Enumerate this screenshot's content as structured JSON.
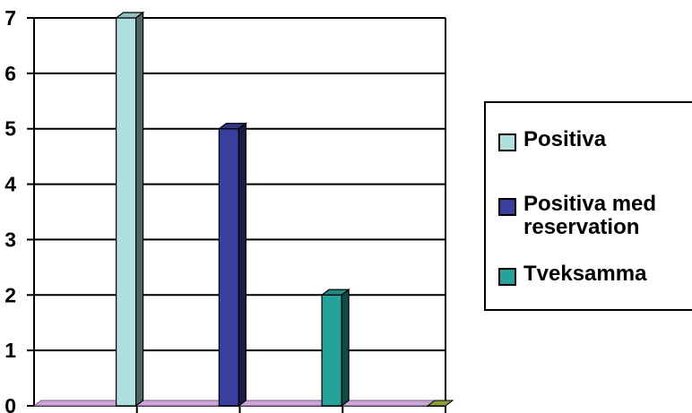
{
  "chart_data": {
    "type": "bar",
    "title": "",
    "xlabel": "",
    "ylabel": "",
    "ylim": [
      0,
      7
    ],
    "y_ticks": [
      "0",
      "1",
      "2",
      "3",
      "4",
      "5",
      "6",
      "7"
    ],
    "grid": true,
    "legend_position": "right",
    "categories": [
      "",
      "",
      "",
      ""
    ],
    "series": [
      {
        "name": "Positiva",
        "values": [
          7,
          0,
          0,
          0
        ],
        "color": "#aee0e0"
      },
      {
        "name": "Positiva med reservation",
        "values": [
          0,
          5,
          0,
          0
        ],
        "color": "#3a3f9e"
      },
      {
        "name": "Tveksamma",
        "values": [
          0,
          0,
          2,
          0
        ],
        "color": "#26a29a"
      }
    ]
  }
}
